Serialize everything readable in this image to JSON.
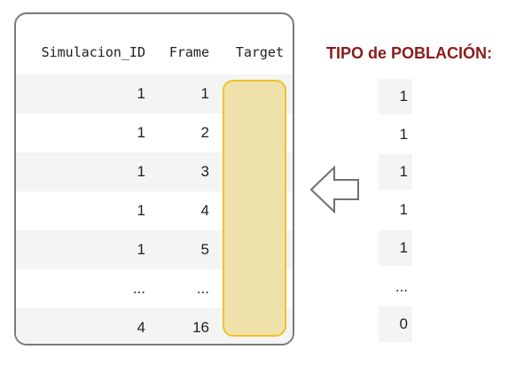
{
  "table": {
    "headers": {
      "simulacion_id": "Simulacion_ID",
      "frame": "Frame",
      "target": "Target"
    },
    "rows": [
      {
        "simulacion_id": "1",
        "frame": "1"
      },
      {
        "simulacion_id": "1",
        "frame": "2"
      },
      {
        "simulacion_id": "1",
        "frame": "3"
      },
      {
        "simulacion_id": "1",
        "frame": "4"
      },
      {
        "simulacion_id": "1",
        "frame": "5"
      },
      {
        "simulacion_id": "...",
        "frame": "..."
      },
      {
        "simulacion_id": "4",
        "frame": "16"
      }
    ]
  },
  "poblacion": {
    "title": "TIPO de POBLACIÓN:",
    "values": [
      "1",
      "1",
      "1",
      "1",
      "1",
      "...",
      "0"
    ]
  },
  "colors": {
    "title": "#8b1b1b",
    "target_fill": "#efe1aa",
    "target_border": "#f2c02a",
    "row_shade": "#f4f4f4",
    "card_border": "#7a7a7a"
  },
  "icons": {
    "arrow": "left-arrow-icon"
  }
}
